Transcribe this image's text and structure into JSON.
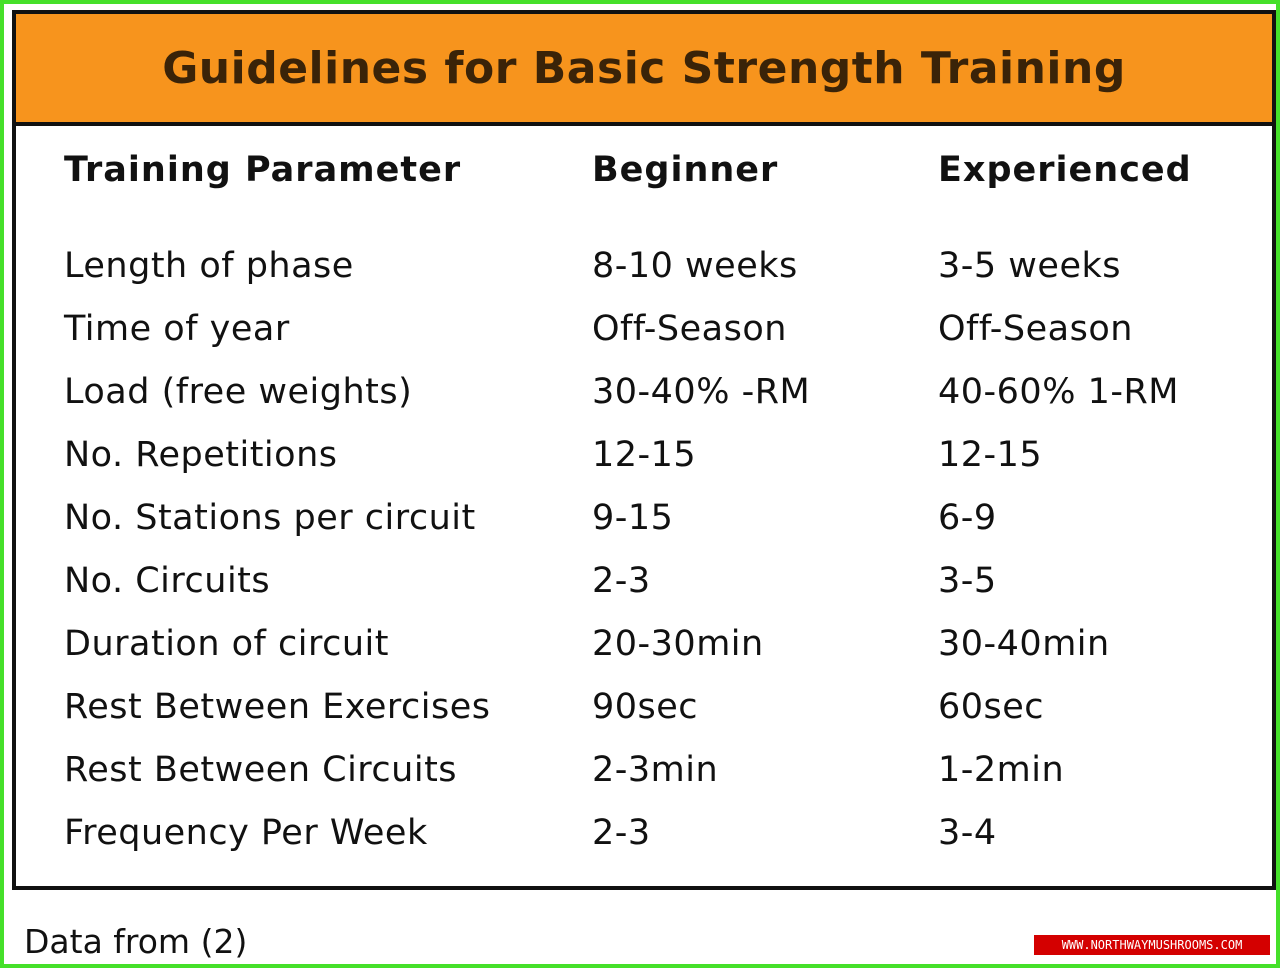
{
  "title": "Guidelines for Basic Strength Training",
  "columns": {
    "parameter": "Training Parameter",
    "beginner": "Beginner",
    "experienced": "Experienced"
  },
  "rows": [
    {
      "parameter": "Length of phase",
      "beginner": "8-10 weeks",
      "experienced": "3-5 weeks"
    },
    {
      "parameter": "Time of year",
      "beginner": "Off-Season",
      "experienced": "Off-Season"
    },
    {
      "parameter": "Load (free weights)",
      "beginner": "30-40% -RM",
      "experienced": "40-60% 1-RM"
    },
    {
      "parameter": "No. Repetitions",
      "beginner": "12-15",
      "experienced": "12-15"
    },
    {
      "parameter": "No. Stations per circuit",
      "beginner": "9-15",
      "experienced": "6-9"
    },
    {
      "parameter": "No. Circuits",
      "beginner": "2-3",
      "experienced": "3-5"
    },
    {
      "parameter": "Duration of circuit",
      "beginner": "20-30min",
      "experienced": "30-40min"
    },
    {
      "parameter": "Rest Between Exercises",
      "beginner": "90sec",
      "experienced": "60sec"
    },
    {
      "parameter": "Rest Between Circuits",
      "beginner": "2-3min",
      "experienced": "1-2min"
    },
    {
      "parameter": "Frequency Per Week",
      "beginner": "2-3",
      "experienced": "3-4"
    }
  ],
  "footer_note": "Data from (2)",
  "watermark": "WWW.NORTHWAYMUSHROOMS.COM",
  "colors": {
    "title_bar": "#f7941d",
    "outer_border": "#45e02a",
    "watermark_bg": "#d40000"
  }
}
